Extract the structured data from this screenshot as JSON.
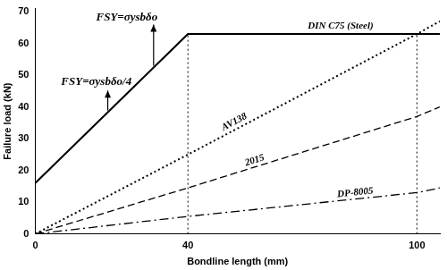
{
  "chart_data": {
    "type": "line",
    "x_label": "Bondline length (mm)",
    "y_label": "Failure load (kN)",
    "x": [
      0,
      40,
      100,
      106
    ],
    "series": [
      {
        "name": "DIN C75 (Steel)",
        "color": "#000000",
        "line_style": "solid",
        "values": [
          16,
          63,
          63,
          63
        ]
      },
      {
        "name": "AV138",
        "color": "#000000",
        "line_style": "dotted",
        "values": [
          0,
          25,
          63,
          67
        ]
      },
      {
        "name": "2015",
        "color": "#000000",
        "line_style": "dashed",
        "values": [
          0,
          14.5,
          37,
          40
        ]
      },
      {
        "name": "DP-8005",
        "color": "#000000",
        "line_style": "dashdot",
        "values": [
          0,
          5.5,
          13,
          14.5
        ]
      }
    ],
    "annotations": [
      "FSY=σysbδo/4",
      "FSY=σysbδo"
    ],
    "vlines": [
      40,
      100
    ],
    "xlim": [
      0,
      106
    ],
    "xticks": [
      0,
      40,
      100
    ],
    "ylim": [
      0,
      71
    ],
    "yticks": [
      0,
      10,
      20,
      30,
      40,
      50,
      60,
      70
    ],
    "grid": false
  }
}
